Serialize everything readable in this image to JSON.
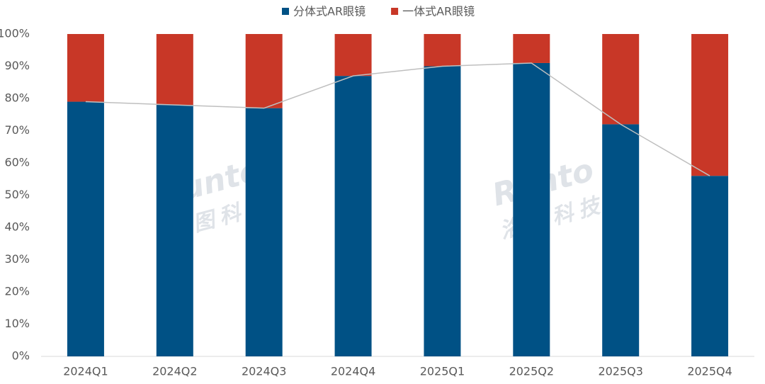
{
  "chart_data": {
    "type": "stacked-bar",
    "categories": [
      "2024Q1",
      "2024Q2",
      "2024Q3",
      "2024Q4",
      "2025Q1",
      "2025Q2",
      "2025Q3",
      "2025Q4"
    ],
    "series": [
      {
        "name": "分体式AR眼镜",
        "color": "#005185",
        "values": [
          79,
          78,
          77,
          87,
          90,
          91,
          72,
          56
        ]
      },
      {
        "name": "一体式AR眼镜",
        "color": "#c83727",
        "values": [
          21,
          22,
          23,
          13,
          10,
          9,
          28,
          44
        ]
      }
    ],
    "line_color": "#bfbfbf",
    "ylim": [
      0,
      100
    ],
    "yticks": [
      {
        "value": 0,
        "label": "0%"
      },
      {
        "value": 10,
        "label": "10%"
      },
      {
        "value": 20,
        "label": "20%"
      },
      {
        "value": 30,
        "label": "30%"
      },
      {
        "value": 40,
        "label": "40%"
      },
      {
        "value": 50,
        "label": "50%"
      },
      {
        "value": 60,
        "label": "60%"
      },
      {
        "value": 70,
        "label": "70%"
      },
      {
        "value": 80,
        "label": "80%"
      },
      {
        "value": 90,
        "label": "90%"
      },
      {
        "value": 100,
        "label": "100%"
      }
    ],
    "legend": "top",
    "watermark": {
      "brand": "Runto",
      "name": "洛图科技"
    }
  }
}
